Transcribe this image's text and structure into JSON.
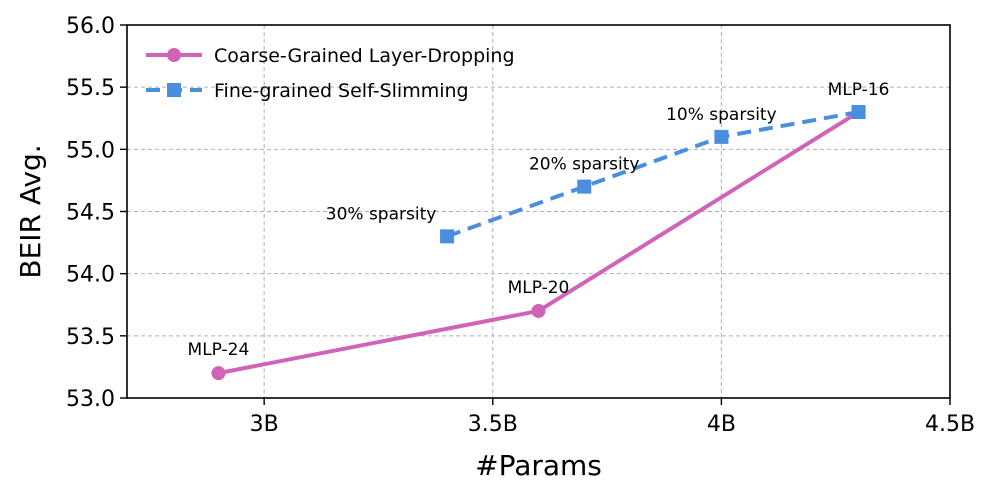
{
  "chart_data": {
    "type": "line",
    "title": "",
    "xlabel": "#Params",
    "ylabel": "BEIR Avg.",
    "xlim": [
      2.7,
      4.5
    ],
    "ylim": [
      53.0,
      56.0
    ],
    "x_ticks": [
      {
        "value": 3.0,
        "label": "3B"
      },
      {
        "value": 3.5,
        "label": "3.5B"
      },
      {
        "value": 4.0,
        "label": "4B"
      },
      {
        "value": 4.5,
        "label": "4.5B"
      }
    ],
    "y_ticks": [
      {
        "value": 53.0,
        "label": "53.0"
      },
      {
        "value": 53.5,
        "label": "53.5"
      },
      {
        "value": 54.0,
        "label": "54.0"
      },
      {
        "value": 54.5,
        "label": "54.5"
      },
      {
        "value": 55.0,
        "label": "55.0"
      },
      {
        "value": 55.5,
        "label": "55.5"
      },
      {
        "value": 56.0,
        "label": "56.0"
      }
    ],
    "grid": true,
    "legend_position": "top-left",
    "series": [
      {
        "name": "Coarse-Grained Layer-Dropping",
        "color": "#d062b8",
        "line_style": "solid",
        "marker": "circle",
        "points": [
          {
            "x": 2.9,
            "y": 53.2,
            "label": "MLP-24"
          },
          {
            "x": 3.6,
            "y": 53.7,
            "label": "MLP-20"
          },
          {
            "x": 4.3,
            "y": 55.3,
            "label": ""
          }
        ]
      },
      {
        "name": "Fine-grained Self-Slimming",
        "color": "#4a8fdf",
        "line_style": "dashed",
        "marker": "square",
        "points": [
          {
            "x": 3.4,
            "y": 54.3,
            "label": "30% sparsity"
          },
          {
            "x": 3.7,
            "y": 54.7,
            "label": "20% sparsity"
          },
          {
            "x": 4.0,
            "y": 55.1,
            "label": "10% sparsity"
          },
          {
            "x": 4.3,
            "y": 55.3,
            "label": "MLP-16"
          }
        ]
      }
    ]
  }
}
